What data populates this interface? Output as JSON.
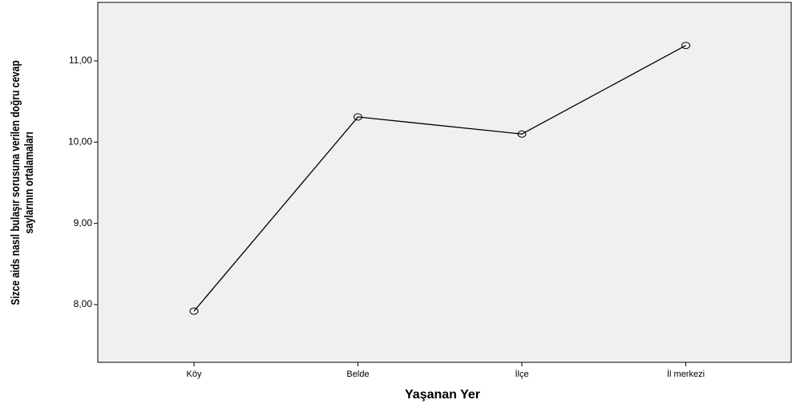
{
  "chart_data": {
    "type": "line",
    "xlabel": "Yaşanan Yer",
    "ylabel": [
      "Sizce aids nasıl bulaşır sorusuna verilen doğru cevap",
      "saylarının ortalamaları"
    ],
    "categories": [
      "Köy",
      "Belde",
      "İlçe",
      "İl merkezi"
    ],
    "values": [
      7.92,
      10.31,
      10.1,
      11.19
    ],
    "color": "#000000",
    "ylim": [
      7.29,
      11.72
    ],
    "yticks": [
      {
        "value": 8,
        "label": "8,00"
      },
      {
        "value": 9,
        "label": "9,00"
      },
      {
        "value": 10,
        "label": "10,00"
      },
      {
        "value": 11,
        "label": "11,00"
      }
    ]
  }
}
